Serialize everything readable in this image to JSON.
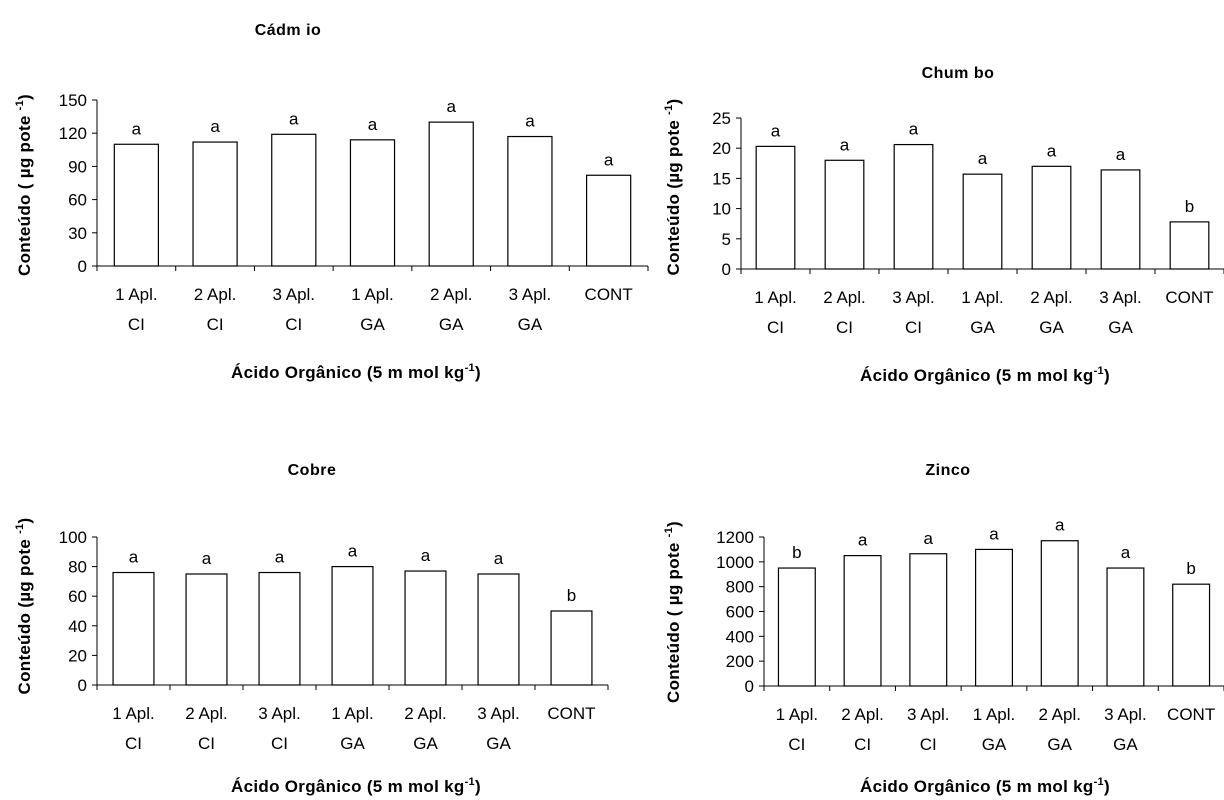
{
  "chart_data": [
    {
      "type": "bar",
      "title": "Cádm io",
      "ylabel": "Conteúdo ( µg pote -1)",
      "xlabel": "Ácido Orgânico (5 m mol kg-1)",
      "ylim": [
        0,
        150
      ],
      "yticks": [
        "0",
        "30",
        "60",
        "90",
        "120",
        "150"
      ],
      "categories": [
        [
          "1 Apl.",
          "CI"
        ],
        [
          "2 Apl.",
          "CI"
        ],
        [
          "3 Apl.",
          "CI"
        ],
        [
          "1 Apl.",
          "GA"
        ],
        [
          "2 Apl.",
          "GA"
        ],
        [
          "3 Apl.",
          "GA"
        ],
        [
          "CONT",
          ""
        ]
      ],
      "values": [
        110,
        112,
        119,
        114,
        130,
        117,
        82
      ],
      "letters": [
        "a",
        "a",
        "a",
        "a",
        "a",
        "a",
        "a"
      ]
    },
    {
      "type": "bar",
      "title": "Chum bo",
      "ylabel": "Conteúdo (µg pote -1)",
      "xlabel": "Ácido Orgânico (5 m mol kg-1)",
      "ylim": [
        0,
        25
      ],
      "yticks": [
        "0",
        "5",
        "10",
        "15",
        "20",
        "25"
      ],
      "categories": [
        [
          "1 Apl.",
          "CI"
        ],
        [
          "2 Apl.",
          "CI"
        ],
        [
          "3 Apl.",
          "CI"
        ],
        [
          "1 Apl.",
          "GA"
        ],
        [
          "2 Apl.",
          "GA"
        ],
        [
          "3 Apl.",
          "GA"
        ],
        [
          "CONT",
          ""
        ]
      ],
      "values": [
        20.3,
        18,
        20.6,
        15.7,
        17,
        16.4,
        7.8
      ],
      "letters": [
        "a",
        "a",
        "a",
        "a",
        "a",
        "a",
        "b"
      ]
    },
    {
      "type": "bar",
      "title": "Cobre",
      "ylabel": "Conteúdo (µg pote -1)",
      "xlabel": "Ácido Orgânico (5 m mol kg-1)",
      "ylim": [
        0,
        100
      ],
      "yticks": [
        "0",
        "20",
        "40",
        "60",
        "80",
        "100"
      ],
      "categories": [
        [
          "1 Apl.",
          "CI"
        ],
        [
          "2 Apl.",
          "CI"
        ],
        [
          "3 Apl.",
          "CI"
        ],
        [
          "1 Apl.",
          "GA"
        ],
        [
          "2 Apl.",
          "GA"
        ],
        [
          "3 Apl.",
          "GA"
        ],
        [
          "CONT",
          ""
        ]
      ],
      "values": [
        76,
        75,
        76,
        80,
        77,
        75,
        50
      ],
      "letters": [
        "a",
        "a",
        "a",
        "a",
        "a",
        "a",
        "b"
      ]
    },
    {
      "type": "bar",
      "title": "Zinco",
      "ylabel": "Conteúdo ( µg pote -1)",
      "xlabel": "Ácido Orgânico (5 m mol kg-1)",
      "ylim": [
        0,
        1200
      ],
      "yticks": [
        "0",
        "200",
        "400",
        "600",
        "800",
        "1000",
        "1200"
      ],
      "categories": [
        [
          "1 Apl.",
          "CI"
        ],
        [
          "2 Apl.",
          "CI"
        ],
        [
          "3 Apl.",
          "CI"
        ],
        [
          "1 Apl.",
          "GA"
        ],
        [
          "2 Apl.",
          "GA"
        ],
        [
          "3 Apl.",
          "GA"
        ],
        [
          "CONT",
          ""
        ]
      ],
      "values": [
        950,
        1050,
        1065,
        1100,
        1170,
        950,
        820
      ],
      "letters": [
        "b",
        "a",
        "a",
        "a",
        "a",
        "a",
        "b"
      ]
    }
  ]
}
